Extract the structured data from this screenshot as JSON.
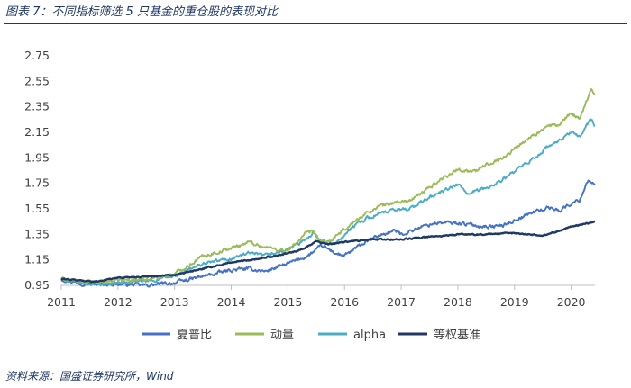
{
  "figure": {
    "title": "图表 7：不同指标筛选 5 只基金的重仓股的表现对比",
    "source": "资料来源：国盛证券研究所，Wind"
  },
  "chart_data": {
    "type": "line",
    "title": "图表 7：不同指标筛选 5 只基金的重仓股的表现对比",
    "xlabel": "",
    "ylabel": "",
    "xlim": [
      2011,
      2020.42
    ],
    "ylim": [
      0.95,
      2.75
    ],
    "yticks": [
      "2.75",
      "2.55",
      "2.35",
      "2.15",
      "1.95",
      "1.75",
      "1.55",
      "1.35",
      "1.15",
      "0.95"
    ],
    "xticks": [
      "2011",
      "2012",
      "2013",
      "2014",
      "2015",
      "2016",
      "2017",
      "2018",
      "2019",
      "2020"
    ],
    "legend_position": "bottom",
    "series": [
      {
        "name": "夏普比",
        "color": "#4472c4",
        "x": [
          2011,
          2011.3,
          2011.6,
          2012,
          2012.5,
          2013,
          2013.5,
          2014,
          2014.3,
          2014.6,
          2015,
          2015.35,
          2015.6,
          2015.85,
          2016,
          2016.3,
          2016.6,
          2016.9,
          2017,
          2017.3,
          2017.6,
          2018,
          2018.3,
          2018.6,
          2018.8,
          2019,
          2019.3,
          2019.6,
          2019.8,
          2020,
          2020.15,
          2020.3,
          2020.42
        ],
        "values": [
          1.0,
          0.97,
          0.96,
          0.96,
          0.95,
          0.97,
          1.02,
          1.07,
          1.08,
          1.06,
          1.12,
          1.18,
          1.26,
          1.2,
          1.18,
          1.27,
          1.34,
          1.38,
          1.35,
          1.4,
          1.44,
          1.44,
          1.42,
          1.41,
          1.42,
          1.46,
          1.52,
          1.56,
          1.54,
          1.59,
          1.62,
          1.78,
          1.74
        ]
      },
      {
        "name": "动量",
        "color": "#9bbb59",
        "x": [
          2011,
          2011.3,
          2011.6,
          2012,
          2012.5,
          2013,
          2013.5,
          2014,
          2014.3,
          2014.6,
          2015,
          2015.3,
          2015.45,
          2015.6,
          2015.8,
          2016,
          2016.3,
          2016.6,
          2016.9,
          2017.2,
          2017.5,
          2017.8,
          2018,
          2018.3,
          2018.6,
          2018.8,
          2019,
          2019.3,
          2019.6,
          2019.8,
          2020,
          2020.15,
          2020.35,
          2020.42
        ],
        "values": [
          1.0,
          0.98,
          0.97,
          0.99,
          1.0,
          1.04,
          1.18,
          1.24,
          1.29,
          1.25,
          1.22,
          1.35,
          1.37,
          1.28,
          1.31,
          1.39,
          1.49,
          1.57,
          1.6,
          1.62,
          1.72,
          1.81,
          1.86,
          1.84,
          1.92,
          1.95,
          2.02,
          2.12,
          2.2,
          2.21,
          2.3,
          2.26,
          2.49,
          2.45
        ]
      },
      {
        "name": "alpha",
        "color": "#4bacc6",
        "x": [
          2011,
          2011.3,
          2011.6,
          2012,
          2012.5,
          2013,
          2013.5,
          2014,
          2014.3,
          2014.6,
          2015,
          2015.3,
          2015.45,
          2015.6,
          2015.8,
          2016,
          2016.3,
          2016.6,
          2016.9,
          2017.2,
          2017.5,
          2017.8,
          2018,
          2018.2,
          2018.4,
          2018.6,
          2018.8,
          2019,
          2019.3,
          2019.6,
          2019.8,
          2020,
          2020.15,
          2020.35,
          2020.42
        ],
        "values": [
          1.0,
          0.97,
          0.96,
          0.97,
          0.98,
          1.02,
          1.12,
          1.16,
          1.2,
          1.18,
          1.23,
          1.3,
          1.37,
          1.3,
          1.27,
          1.35,
          1.46,
          1.51,
          1.54,
          1.56,
          1.64,
          1.7,
          1.74,
          1.66,
          1.7,
          1.73,
          1.78,
          1.84,
          1.93,
          2.04,
          2.08,
          2.16,
          2.11,
          2.26,
          2.2
        ]
      },
      {
        "name": "等权基准",
        "color": "#1f3864",
        "x": [
          2011,
          2011.3,
          2011.6,
          2012,
          2012.5,
          2013,
          2013.5,
          2014,
          2014.5,
          2015,
          2015.3,
          2015.5,
          2015.7,
          2016,
          2016.5,
          2017,
          2017.5,
          2018,
          2018.5,
          2019,
          2019.5,
          2019.8,
          2020,
          2020.2,
          2020.42
        ],
        "values": [
          1.0,
          0.99,
          0.98,
          1.01,
          1.02,
          1.03,
          1.08,
          1.13,
          1.16,
          1.2,
          1.24,
          1.3,
          1.27,
          1.29,
          1.31,
          1.31,
          1.33,
          1.35,
          1.35,
          1.36,
          1.34,
          1.38,
          1.41,
          1.43,
          1.45
        ]
      }
    ]
  }
}
